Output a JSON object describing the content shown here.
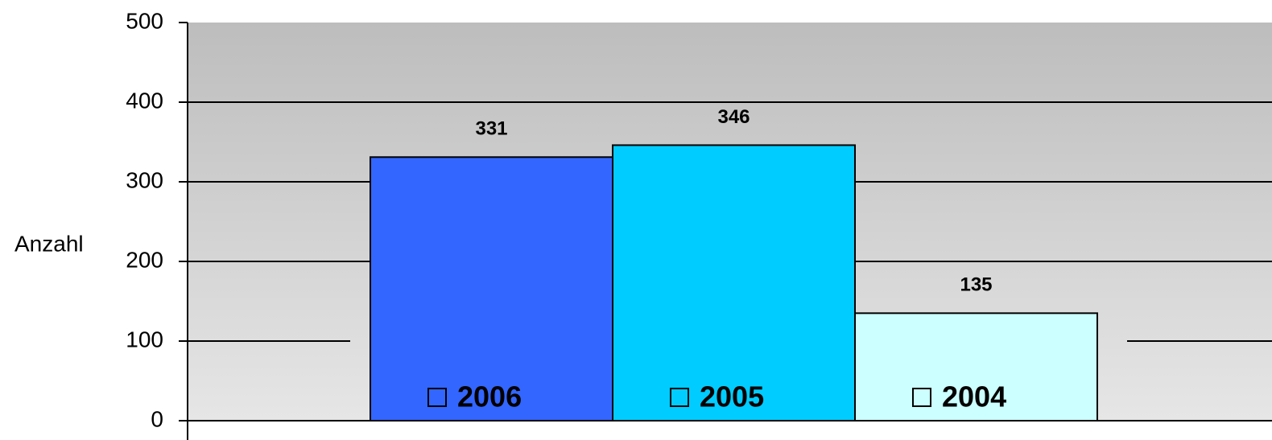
{
  "chart_data": {
    "type": "bar",
    "y_label": "Anzahl",
    "series": [
      {
        "name": "2006",
        "color": "#3366ff",
        "values": [
          331
        ]
      },
      {
        "name": "2005",
        "color": "#00ccff",
        "values": [
          346
        ]
      },
      {
        "name": "2004",
        "color": "#ccffff",
        "values": [
          135
        ]
      }
    ],
    "ylim": [
      0,
      500
    ],
    "yticks": [
      0,
      100,
      200,
      300,
      400,
      500
    ],
    "grid": true
  }
}
